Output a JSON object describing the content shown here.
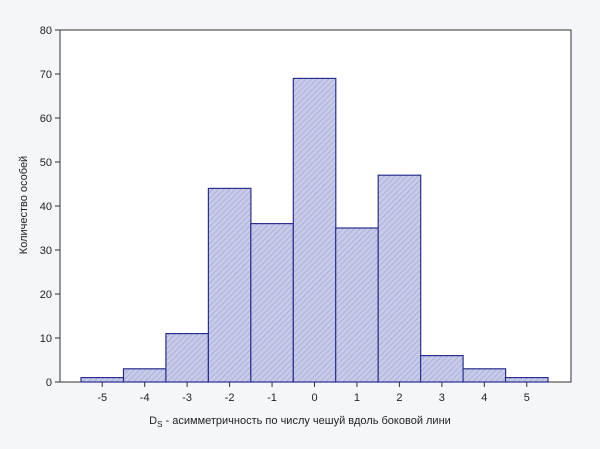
{
  "chart_data": {
    "type": "bar",
    "categories": [
      "-5",
      "-4",
      "-3",
      "-2",
      "-1",
      "0",
      "1",
      "2",
      "3",
      "4",
      "5"
    ],
    "values": [
      1,
      3,
      11,
      44,
      36,
      69,
      35,
      47,
      6,
      3,
      1
    ],
    "xlabel": "D",
    "xlabel_sub": "S",
    "xlabel_rest": " - асимметричность по числу чешуй вдоль боковой лини",
    "ylabel": "Количество особей",
    "ylim": [
      0,
      80
    ],
    "yticks": [
      "0",
      "10",
      "20",
      "30",
      "40",
      "50",
      "60",
      "70",
      "80"
    ],
    "grid": false,
    "bar_fill": "#c8cbe8",
    "bar_stroke": "#2a2f8f",
    "hatch_color": "#8f95cf"
  }
}
